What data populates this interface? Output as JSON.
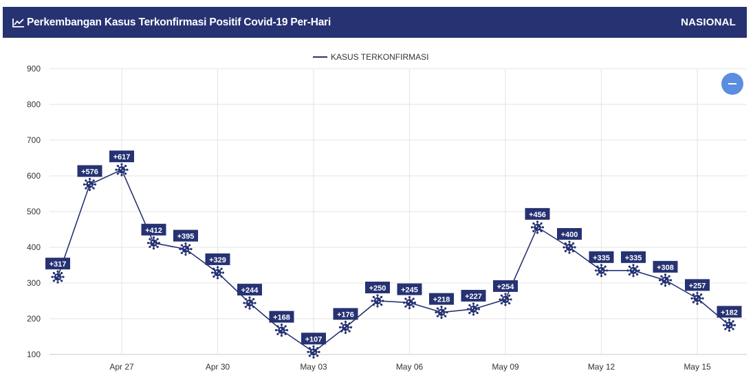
{
  "header": {
    "title": "Perkembangan Kasus Terkonfirmasi Positif Covid-19 Per-Hari",
    "region": "NASIONAL",
    "icon": "line-chart-icon"
  },
  "controls": {
    "collapse_icon": "minus-icon"
  },
  "colors": {
    "brand": "#263272",
    "accent_button": "#5b8de0",
    "line": "#263272"
  },
  "chart_data": {
    "type": "line",
    "legend": "KASUS TERKONFIRMASI",
    "legend_position": "top-center",
    "ylim": [
      100,
      900
    ],
    "yticks": [
      100,
      200,
      300,
      400,
      500,
      600,
      700,
      800,
      900
    ],
    "xticks": [
      "Apr 27",
      "Apr 30",
      "May 03",
      "May 06",
      "May 09",
      "May 12",
      "May 15"
    ],
    "grid": true,
    "marker": "virus-icon",
    "series": [
      {
        "name": "KASUS TERKONFIRMASI",
        "x": [
          "Apr 25",
          "Apr 26",
          "Apr 27",
          "Apr 28",
          "Apr 29",
          "Apr 30",
          "May 01",
          "May 02",
          "May 03",
          "May 04",
          "May 05",
          "May 06",
          "May 07",
          "May 08",
          "May 09",
          "May 10",
          "May 11",
          "May 12",
          "May 13",
          "May 14",
          "May 15",
          "May 16"
        ],
        "values": [
          317,
          576,
          617,
          412,
          395,
          329,
          244,
          168,
          107,
          176,
          250,
          245,
          218,
          227,
          254,
          456,
          400,
          335,
          335,
          308,
          257,
          182
        ],
        "labels": [
          "+317",
          "+576",
          "+617",
          "+412",
          "+395",
          "+329",
          "+244",
          "+168",
          "+107",
          "+176",
          "+250",
          "+245",
          "+218",
          "+227",
          "+254",
          "+456",
          "+400",
          "+335",
          "+335",
          "+308",
          "+257",
          "+182"
        ]
      }
    ]
  }
}
